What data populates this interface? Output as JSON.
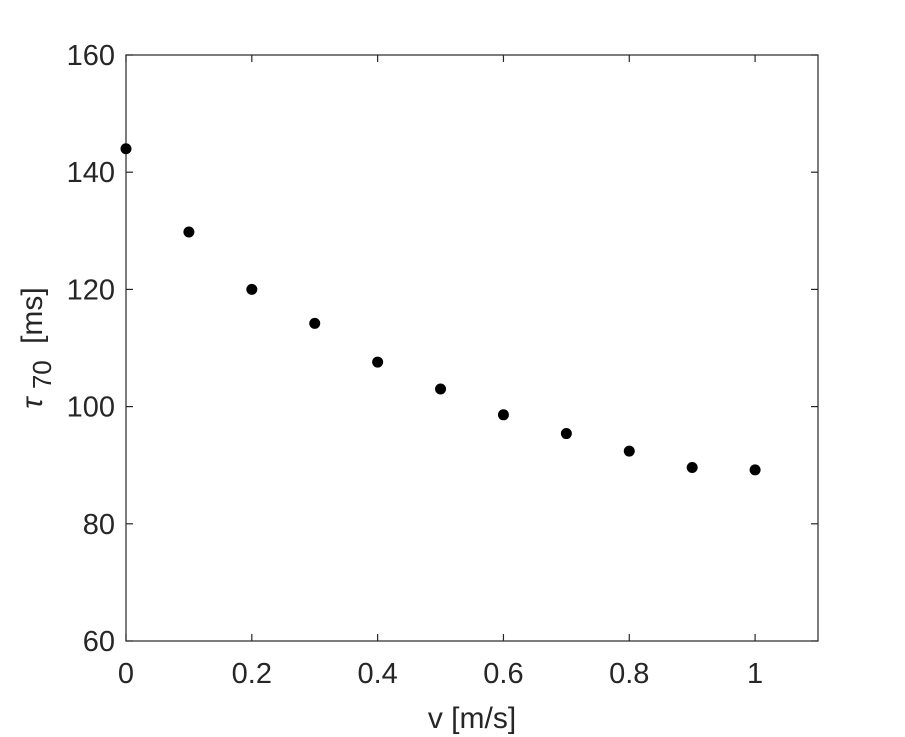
{
  "chart_data": {
    "type": "scatter",
    "x": [
      0,
      0.1,
      0.2,
      0.3,
      0.4,
      0.5,
      0.6,
      0.7,
      0.8,
      0.9,
      1.0
    ],
    "y": [
      144.0,
      129.8,
      120.0,
      114.2,
      107.6,
      103.0,
      98.6,
      95.4,
      92.4,
      89.6,
      89.2
    ],
    "xlabel": "v [m/s]",
    "ylabel_main": "τ",
    "ylabel_sub": "70",
    "ylabel_unit": "[ms]",
    "xlim": [
      0,
      1.1
    ],
    "ylim": [
      60,
      160
    ],
    "x_ticks": [
      0,
      0.2,
      0.4,
      0.6,
      0.8,
      1
    ],
    "x_tick_labels": [
      "0",
      "0.2",
      "0.4",
      "0.6",
      "0.8",
      "1"
    ],
    "y_ticks": [
      60,
      80,
      100,
      120,
      140,
      160
    ],
    "y_tick_labels": [
      "60",
      "80",
      "100",
      "120",
      "140",
      "160"
    ],
    "grid": false,
    "marker_color": "#000000",
    "axis_color": "#262626"
  }
}
